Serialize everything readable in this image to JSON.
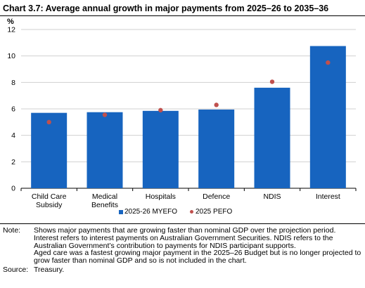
{
  "title": "Chart 3.7: Average annual growth in major payments from 2025–26 to 2035–36",
  "chart_data": {
    "type": "bar",
    "title": "Chart 3.7: Average annual growth in major payments from 2025–26 to 2035–36",
    "ylabel": "%",
    "xlabel": "",
    "ylim": [
      0,
      12
    ],
    "yticks": [
      0,
      2,
      4,
      6,
      8,
      10,
      12
    ],
    "grid": true,
    "legend_position": "bottom",
    "categories": [
      [
        "Child Care",
        "Subsidy"
      ],
      [
        "Medical",
        "Benefits"
      ],
      [
        "Hospitals"
      ],
      [
        "Defence"
      ],
      [
        "NDIS"
      ],
      [
        "Interest"
      ]
    ],
    "series": [
      {
        "name": "2025-26 MYEFO",
        "type": "bar",
        "color": "#1764BF",
        "values": [
          5.7,
          5.75,
          5.85,
          5.95,
          7.6,
          10.75
        ]
      },
      {
        "name": "2025 PEFO",
        "type": "marker",
        "color": "#C0504D",
        "values": [
          5.0,
          5.55,
          5.9,
          6.3,
          8.05,
          9.5
        ]
      }
    ]
  },
  "notes": {
    "note_label": "Note:",
    "note_lines": [
      "Shows major payments that are growing faster than nominal GDP over the projection period.",
      "Interest refers to interest payments on Australian Government Securities. NDIS refers to the Australian Government’s contribution to payments for NDIS participant supports.",
      "Aged care was a fastest growing major payment in the 2025–26 Budget but is no longer projected to grow faster than nominal GDP and so is not included in the chart."
    ],
    "source_label": "Source:",
    "source_text": "Treasury."
  }
}
